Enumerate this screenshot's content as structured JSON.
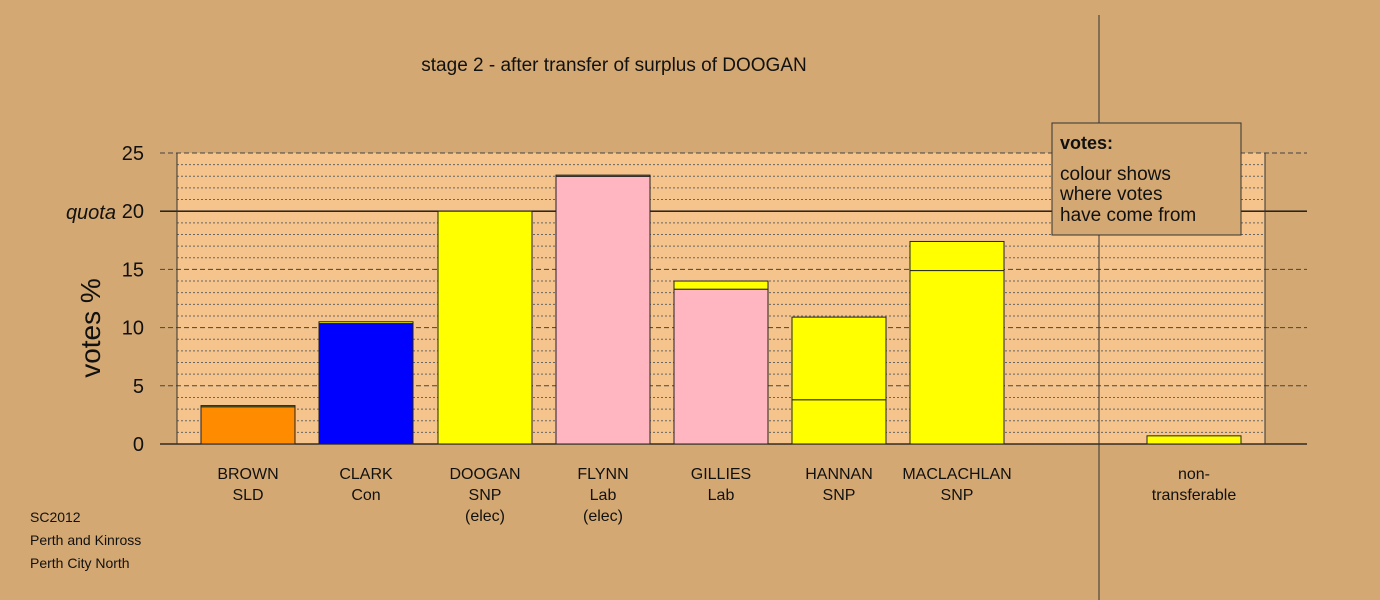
{
  "chart_data": {
    "type": "bar",
    "title": "stage 2 - after transfer of surplus of DOOGAN",
    "ylabel": "votes %",
    "ylim": [
      0,
      25
    ],
    "yticks": [
      0,
      5,
      10,
      15,
      20,
      25
    ],
    "quota": {
      "label": "quota",
      "value": 20
    },
    "grid": "dashed horizontal lines every 1%",
    "categories": [
      [
        "BROWN",
        "SLD"
      ],
      [
        "CLARK",
        "Con"
      ],
      [
        "DOOGAN",
        "SNP",
        "(elec)"
      ],
      [
        "FLYNN",
        "Lab",
        "(elec)"
      ],
      [
        "GILLIES",
        "Lab"
      ],
      [
        "HANNAN",
        "SNP"
      ],
      [
        "MACLACHLAN",
        "SNP"
      ],
      [
        "non-",
        "transferable"
      ]
    ],
    "bars": [
      {
        "segments": [
          {
            "value": 3.2,
            "color": "#ff8c00"
          },
          {
            "value": 0.1,
            "color": "#ffff00"
          }
        ]
      },
      {
        "segments": [
          {
            "value": 10.35,
            "color": "#0000ff"
          },
          {
            "value": 0.15,
            "color": "#ffff00"
          }
        ]
      },
      {
        "segments": [
          {
            "value": 20.0,
            "color": "#ffff00"
          }
        ]
      },
      {
        "segments": [
          {
            "value": 23.0,
            "color": "#ffb6c1"
          },
          {
            "value": 0.1,
            "color": "#ffff00"
          }
        ]
      },
      {
        "segments": [
          {
            "value": 13.3,
            "color": "#ffb6c1"
          },
          {
            "value": 0.7,
            "color": "#ffff00"
          }
        ]
      },
      {
        "segments": [
          {
            "value": 3.8,
            "color": "#ffff00"
          },
          {
            "value": 7.1,
            "color": "#ffff00"
          }
        ]
      },
      {
        "segments": [
          {
            "value": 14.9,
            "color": "#ffff00"
          },
          {
            "value": 2.5,
            "color": "#ffff00"
          }
        ]
      },
      {
        "segments": [
          {
            "value": 0.7,
            "color": "#ffff00"
          }
        ]
      }
    ],
    "legend": {
      "title": "votes:",
      "lines": [
        "colour shows",
        "where votes",
        "have come from"
      ],
      "placement": "top-right"
    },
    "colors": {
      "background": "#d4a872",
      "plot_area": "#f5c48c"
    }
  },
  "footer": {
    "line1": "SC2012",
    "line2": "Perth and Kinross",
    "line3": "Perth City North"
  }
}
